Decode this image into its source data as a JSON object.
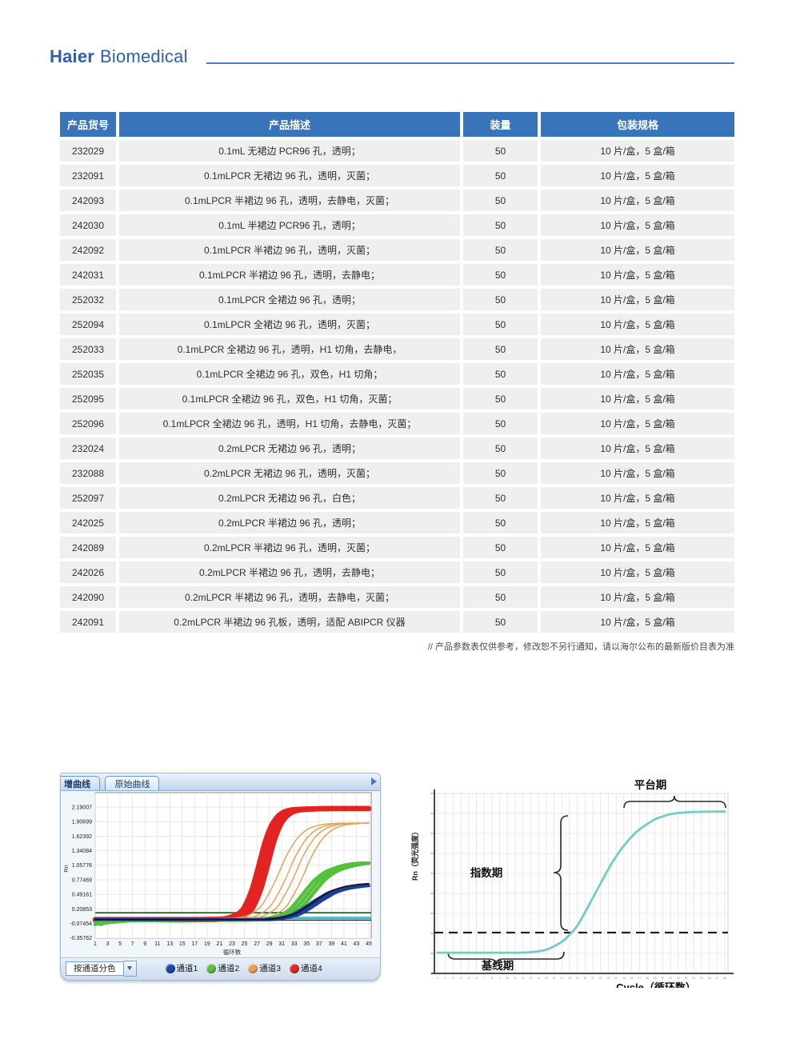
{
  "brand": {
    "haier": "Haier",
    "biomedical": "Biomedical"
  },
  "table": {
    "headers": [
      "产品货号",
      "产品描述",
      "装量",
      "包装规格"
    ],
    "rows": [
      [
        "232029",
        "0.1mL 无裙边 PCR96 孔，透明；",
        "50",
        "10 片/盒，5 盒/箱"
      ],
      [
        "232091",
        "0.1mLPCR 无裙边 96 孔，透明，灭菌；",
        "50",
        "10 片/盒，5 盒/箱"
      ],
      [
        "242093",
        "0.1mLPCR 半裙边 96 孔，透明，去静电，灭菌；",
        "50",
        "10 片/盒，5 盒/箱"
      ],
      [
        "242030",
        "0.1mL 半裙边 PCR96 孔，透明；",
        "50",
        "10 片/盒，5 盒/箱"
      ],
      [
        "242092",
        "0.1mLPCR 半裙边 96 孔，透明，灭菌；",
        "50",
        "10 片/盒，5 盒/箱"
      ],
      [
        "242031",
        "0.1mLPCR 半裙边 96 孔，透明，去静电；",
        "50",
        "10 片/盒，5 盒/箱"
      ],
      [
        "252032",
        "0.1mLPCR 全裙边 96 孔，透明；",
        "50",
        "10 片/盒，5 盒/箱"
      ],
      [
        "252094",
        "0.1mLPCR 全裙边 96 孔，透明，灭菌；",
        "50",
        "10 片/盒，5 盒/箱"
      ],
      [
        "252033",
        "0.1mLPCR 全裙边 96 孔，透明，H1 切角，去静电，",
        "50",
        "10 片/盒，5 盒/箱"
      ],
      [
        "252035",
        "0.1mLPCR 全裙边 96 孔，双色，H1 切角；",
        "50",
        "10 片/盒，5 盒/箱"
      ],
      [
        "252095",
        "0.1mLPCR 全裙边 96 孔，双色，H1 切角，灭菌；",
        "50",
        "10 片/盒，5 盒/箱"
      ],
      [
        "252096",
        "0.1mLPCR 全裙边 96 孔，透明，H1 切角，去静电，灭菌；",
        "50",
        "10 片/盒，5 盒/箱"
      ],
      [
        "232024",
        "0.2mLPCR 无裙边 96 孔，透明；",
        "50",
        "10 片/盒，5 盒/箱"
      ],
      [
        "232088",
        "0.2mLPCR 无裙边 96 孔，透明，灭菌；",
        "50",
        "10 片/盒，5 盒/箱"
      ],
      [
        "252097",
        "0.2mLPCR 无裙边 96 孔，白色；",
        "50",
        "10 片/盒，5 盒/箱"
      ],
      [
        "242025",
        "0.2mLPCR 半裙边 96 孔，透明；",
        "50",
        "10 片/盒，5 盒/箱"
      ],
      [
        "242089",
        "0.2mLPCR 半裙边 96 孔，透明，灭菌；",
        "50",
        "10 片/盒，5 盒/箱"
      ],
      [
        "242026",
        "0.2mLPCR 半裙边 96 孔，透明，去静电；",
        "50",
        "10 片/盒，5 盒/箱"
      ],
      [
        "242090",
        "0.2mLPCR 半裙边 96 孔，透明，去静电，灭菌；",
        "50",
        "10 片/盒，5 盒/箱"
      ],
      [
        "242091",
        "0.2mLPCR 半裙边 96 孔板，透明，适配 ABIPCR 仪器",
        "50",
        "10 片/盒，5 盒/箱"
      ]
    ]
  },
  "footnote": "// 产品参数表仅供参考，修改恕不另行通知，请以海尔公布的最新版价目表为准",
  "chart_data": [
    {
      "id": "qpcr-amplification-software",
      "type": "line",
      "tabs": [
        "增曲线",
        "原始曲线"
      ],
      "ylabel": "Rn",
      "xlabel": "循环数",
      "y_ticks": [
        "2.19007",
        "1.90699",
        "1.62392",
        "1.34084",
        "1.05776",
        "0.77469",
        "0.49161",
        "0.20853",
        "-0.07454",
        "-0.35762"
      ],
      "x_ticks": [
        1,
        3,
        5,
        7,
        9,
        11,
        13,
        15,
        17,
        19,
        21,
        23,
        25,
        27,
        29,
        31,
        33,
        35,
        37,
        39,
        41,
        43,
        45
      ],
      "xlim": [
        1,
        45
      ],
      "ylim": [
        -0.36,
        2.47
      ],
      "grid": true,
      "toolbar": {
        "dropdown_label": "按通道分色"
      },
      "legend": [
        {
          "label": "通道1",
          "color": "#1f49a8"
        },
        {
          "label": "通道2",
          "color": "#5cc23f"
        },
        {
          "label": "通道3",
          "color": "#eda157"
        },
        {
          "label": "通道4",
          "color": "#e32a23"
        }
      ],
      "series": [
        {
          "name": "通道4",
          "color": "#e32222",
          "width": 6.5,
          "offsets": [
            -0.7,
            0,
            0.7
          ],
          "points": [
            [
              1,
              0
            ],
            [
              11,
              0
            ],
            [
              17,
              0
            ],
            [
              21,
              0.01
            ],
            [
              23,
              0.03
            ],
            [
              25,
              0.14
            ],
            [
              26,
              0.32
            ],
            [
              27,
              0.62
            ],
            [
              28,
              1.05
            ],
            [
              29,
              1.5
            ],
            [
              30,
              1.82
            ],
            [
              31,
              2.0
            ],
            [
              32,
              2.09
            ],
            [
              33,
              2.13
            ],
            [
              35,
              2.15
            ],
            [
              39,
              2.16
            ],
            [
              45,
              2.16
            ]
          ]
        },
        {
          "name": "通道3",
          "color": "#e5a35b",
          "width": 1.5,
          "offsets": [
            -1.5,
            0,
            1.2,
            2.6
          ],
          "points": [
            [
              1,
              0.01
            ],
            [
              19,
              0.01
            ],
            [
              23,
              0.02
            ],
            [
              25,
              0.03
            ],
            [
              27,
              0.08
            ],
            [
              29,
              0.24
            ],
            [
              30,
              0.42
            ],
            [
              31,
              0.64
            ],
            [
              32,
              0.9
            ],
            [
              33,
              1.18
            ],
            [
              34,
              1.4
            ],
            [
              35,
              1.58
            ],
            [
              36,
              1.7
            ],
            [
              37,
              1.78
            ],
            [
              38,
              1.82
            ],
            [
              39,
              1.85
            ],
            [
              41,
              1.87
            ],
            [
              45,
              1.88
            ]
          ]
        },
        {
          "name": "通道2",
          "color": "#54c13d",
          "width": 4.5,
          "offsets": [
            -0.8,
            0,
            0.8
          ],
          "points": [
            [
              1,
              -0.09
            ],
            [
              2,
              -0.06
            ],
            [
              3,
              -0.045
            ],
            [
              5,
              -0.025
            ],
            [
              7,
              -0.015
            ],
            [
              11,
              -0.01
            ],
            [
              19,
              -0.005
            ],
            [
              27,
              0
            ],
            [
              29,
              0.015
            ],
            [
              31,
              0.06
            ],
            [
              32,
              0.11
            ],
            [
              33,
              0.19
            ],
            [
              34,
              0.32
            ],
            [
              35,
              0.47
            ],
            [
              36,
              0.62
            ],
            [
              37,
              0.76
            ],
            [
              38,
              0.86
            ],
            [
              39,
              0.94
            ],
            [
              41,
              1.03
            ],
            [
              43,
              1.08
            ],
            [
              45,
              1.1
            ]
          ]
        },
        {
          "name": "通道1",
          "color": "#1b3f9f",
          "width": 3.5,
          "offsets": [
            -0.6,
            0,
            0.6
          ],
          "points": [
            [
              1,
              0
            ],
            [
              27,
              0
            ],
            [
              29,
              0.01
            ],
            [
              31,
              0.03
            ],
            [
              33,
              0.09
            ],
            [
              34,
              0.15
            ],
            [
              35,
              0.22
            ],
            [
              36,
              0.3
            ],
            [
              37,
              0.38
            ],
            [
              38,
              0.45
            ],
            [
              39,
              0.52
            ],
            [
              41,
              0.6
            ],
            [
              43,
              0.64
            ],
            [
              45,
              0.66
            ]
          ]
        },
        {
          "name": "黑色曲线",
          "color": "#141414",
          "width": 1.8,
          "offsets": [
            0
          ],
          "points": [
            [
              1,
              0.005
            ],
            [
              27,
              0.005
            ],
            [
              29,
              0.015
            ],
            [
              31,
              0.04
            ],
            [
              33,
              0.11
            ],
            [
              34,
              0.17
            ],
            [
              35,
              0.25
            ],
            [
              36,
              0.33
            ],
            [
              37,
              0.42
            ],
            [
              38,
              0.49
            ],
            [
              39,
              0.56
            ],
            [
              41,
              0.64
            ],
            [
              43,
              0.68
            ],
            [
              45,
              0.7
            ]
          ]
        }
      ],
      "flat_lines": [
        {
          "name": "阈值线",
          "color": "#1e6b2d",
          "value": 0.135,
          "width": 1.8
        },
        {
          "name": "平线-蓝",
          "color": "#3f7fd0",
          "value": 0.045,
          "width": 1.4
        },
        {
          "name": "平线-青",
          "color": "#2aa7ad",
          "value": 0.015,
          "width": 1.4
        },
        {
          "name": "平线-黑",
          "color": "#141414",
          "value": -0.012,
          "width": 1.1
        }
      ]
    },
    {
      "id": "pcr-phases-schematic",
      "type": "line",
      "ylabel": "Rn（荧光强度）",
      "xlabel": "Cycle（循环数）",
      "annotations": {
        "plateau": "平台期",
        "exponential": "指数期",
        "baseline": "基线期"
      },
      "curve_color": "#72cdc2",
      "threshold_dashed": true,
      "threshold_norm": 0.227,
      "x_ticks": [
        1,
        2,
        3,
        4,
        5,
        6,
        7,
        8,
        9,
        10,
        11,
        12,
        13,
        14,
        15,
        16,
        17,
        18,
        19,
        20,
        21,
        22,
        23,
        24,
        25,
        26,
        27,
        28,
        29,
        30,
        31,
        32,
        33,
        34,
        35,
        36,
        37,
        38
      ],
      "y_tick_count": 10,
      "y_tick_labels_legible": false,
      "points": [
        [
          1,
          0.115
        ],
        [
          5,
          0.115
        ],
        [
          9,
          0.115
        ],
        [
          11,
          0.115
        ],
        [
          13,
          0.118
        ],
        [
          15,
          0.132
        ],
        [
          17,
          0.175
        ],
        [
          18,
          0.215
        ],
        [
          19,
          0.265
        ],
        [
          20,
          0.34
        ],
        [
          21,
          0.42
        ],
        [
          22,
          0.5
        ],
        [
          23,
          0.58
        ],
        [
          24,
          0.65
        ],
        [
          25,
          0.71
        ],
        [
          26,
          0.76
        ],
        [
          27,
          0.8
        ],
        [
          28,
          0.83
        ],
        [
          29,
          0.857
        ],
        [
          30,
          0.872
        ],
        [
          31,
          0.885
        ],
        [
          33,
          0.895
        ],
        [
          35,
          0.898
        ],
        [
          38,
          0.9
        ]
      ]
    }
  ]
}
